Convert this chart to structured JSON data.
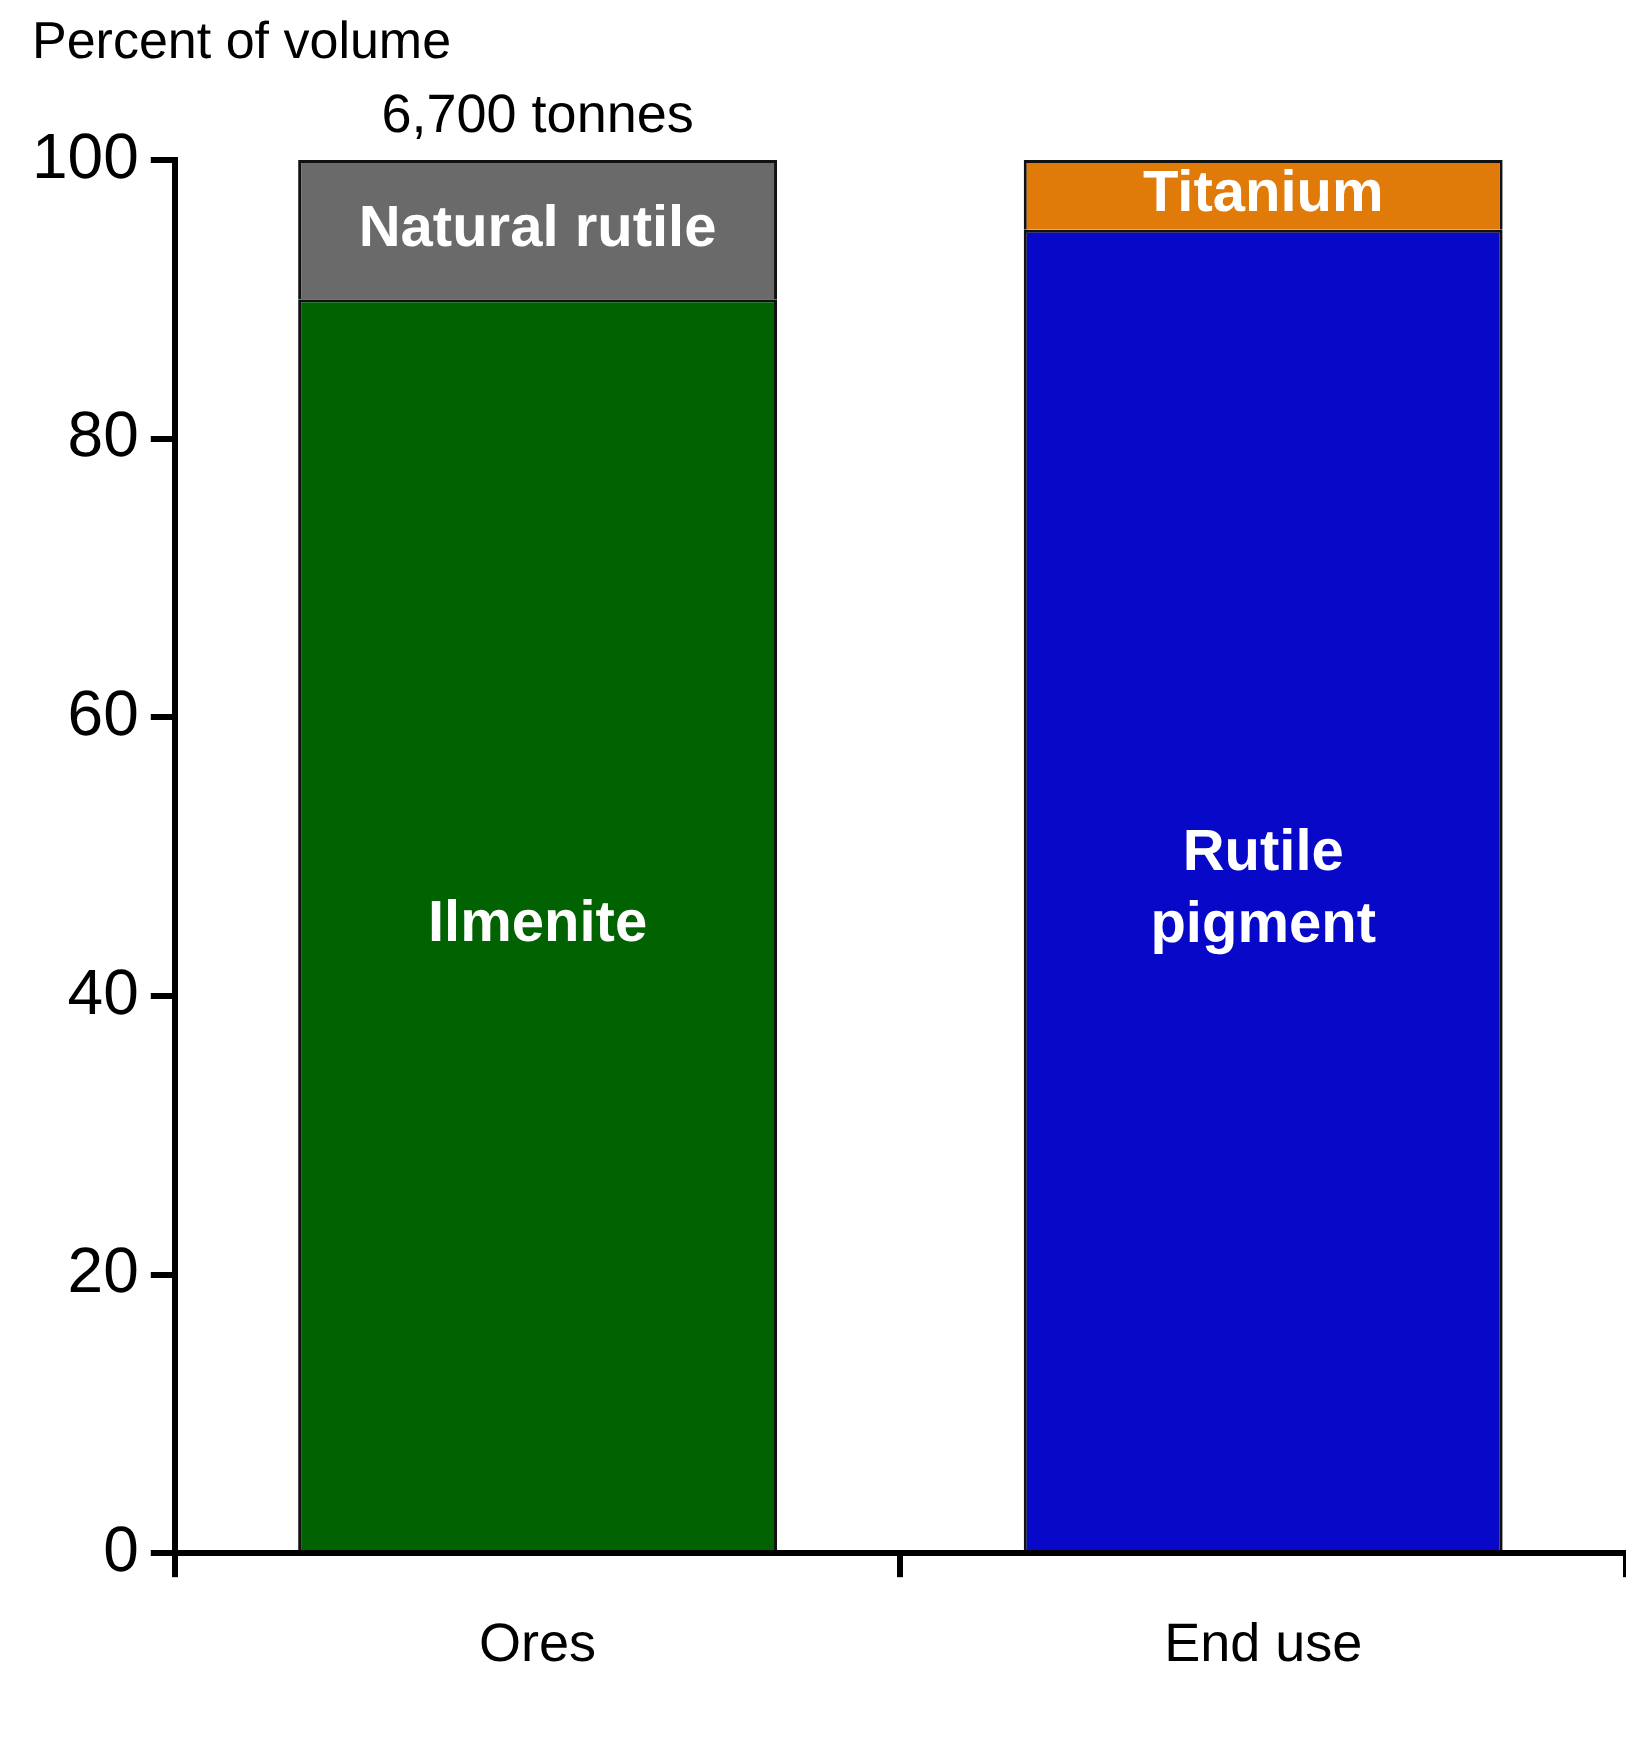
{
  "chart_data": {
    "type": "bar",
    "stacked": true,
    "ylabel": "Percent of volume",
    "categories": [
      "Ores",
      "End use"
    ],
    "series": [
      {
        "name": "Ilmenite",
        "color": "#006200",
        "values": [
          90,
          null
        ]
      },
      {
        "name": "Natural rutile",
        "color": "#6a6a6a",
        "values": [
          10,
          null
        ]
      },
      {
        "name": "Rutile pigment",
        "color": "#0808c8",
        "values": [
          null,
          95
        ]
      },
      {
        "name": "Titanium",
        "color": "#e07a08",
        "values": [
          null,
          5
        ]
      }
    ],
    "annotations": [
      {
        "text": "6,700 tonnes",
        "x": "Ores",
        "y": 100
      }
    ],
    "ylim": [
      0,
      100
    ],
    "yticks": [
      0,
      20,
      40,
      60,
      80,
      100
    ],
    "grid": false,
    "legend": false
  }
}
